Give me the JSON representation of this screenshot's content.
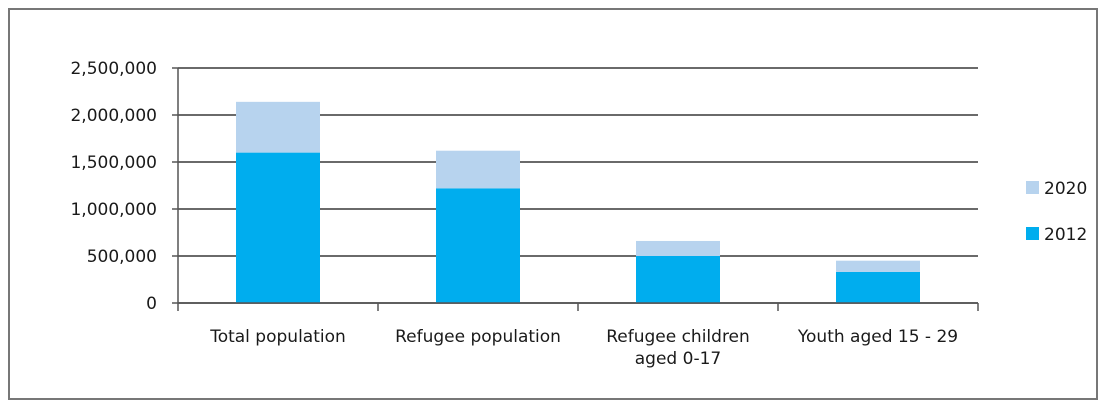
{
  "chart_data": {
    "type": "bar",
    "stacked": true,
    "title": "",
    "xlabel": "",
    "ylabel": "",
    "ylim": [
      0,
      2500000
    ],
    "yticks": [
      "0",
      "500,000",
      "1,000,000",
      "1,500,000",
      "2,000,000",
      "2,500,000"
    ],
    "ytick_values": [
      0,
      500000,
      1000000,
      1500000,
      2000000,
      2500000
    ],
    "grid": true,
    "legend_position": "right",
    "categories": [
      [
        "Total  population"
      ],
      [
        "Refugee population"
      ],
      [
        "Refugee  children",
        "aged 0-17"
      ],
      [
        "Youth aged 15 - 29"
      ]
    ],
    "series": [
      {
        "name": "2012",
        "color": "#00adee",
        "values": [
          1600000,
          1220000,
          500000,
          330000
        ]
      },
      {
        "name": "2020",
        "color": "#b7d3ee",
        "values": [
          540000,
          400000,
          160000,
          120000
        ]
      }
    ],
    "legend_order": [
      "2020",
      "2012"
    ]
  }
}
